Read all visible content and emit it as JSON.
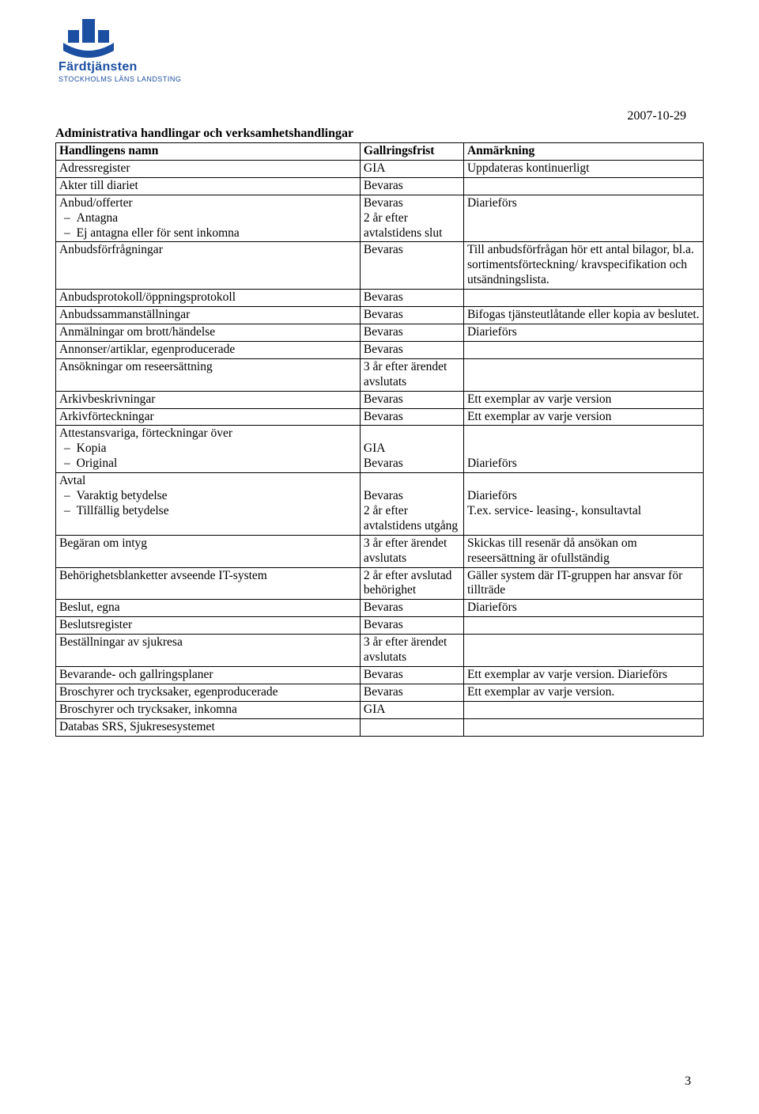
{
  "logo": {
    "brand": "Färdtjänsten",
    "subline": "STOCKHOLMS LÄNS LANDSTING",
    "primary_color": "#1c4fa1"
  },
  "date": "2007-10-29",
  "section_title": "Administrativa handlingar och verksamhetshandlingar",
  "columns": [
    "Handlingens namn",
    "Gallringsfrist",
    "Anmärkning"
  ],
  "rows": [
    {
      "name": "Adressregister",
      "frist": "GIA",
      "note": "Uppdateras kontinuerligt"
    },
    {
      "name": "Akter till diariet",
      "frist": "Bevaras",
      "note": ""
    },
    {
      "name_head": "Anbud/offerter",
      "subitems": [
        "Antagna",
        "Ej antagna eller för sent inkomna"
      ],
      "frist": "Bevaras\n2 år efter avtalstidens slut",
      "note": "Diarieförs"
    },
    {
      "name": "Anbudsförfrågningar",
      "frist": "Bevaras",
      "note": "Till anbudsförfrågan hör ett antal bilagor, bl.a. sortimentsförteckning/ kravspecifikation och utsändningslista."
    },
    {
      "name": "Anbudsprotokoll/öppningsprotokoll",
      "frist": "Bevaras",
      "note": ""
    },
    {
      "name": "Anbudssammanställningar",
      "frist": "Bevaras",
      "note": "Bifogas tjänsteutlåtande eller kopia av beslutet."
    },
    {
      "name": "Anmälningar om brott/händelse",
      "frist": "Bevaras",
      "note": "Diarieförs"
    },
    {
      "name": "Annonser/artiklar, egenproducerade",
      "frist": "Bevaras",
      "note": ""
    },
    {
      "name": "Ansökningar om reseersättning",
      "frist": "3 år efter ärendet avslutats",
      "note": ""
    },
    {
      "name": "Arkivbeskrivningar",
      "frist": "Bevaras",
      "note": "Ett exemplar av varje version"
    },
    {
      "name": "Arkivförteckningar",
      "frist": "Bevaras",
      "note": "Ett exemplar av varje version"
    },
    {
      "name_head": "Attestansvariga, förteckningar över",
      "subitems": [
        "Kopia",
        "Original"
      ],
      "frist": "\nGIA\nBevaras",
      "note": "\n\nDiarieförs"
    },
    {
      "name_head": "Avtal",
      "subitems": [
        "Varaktig betydelse",
        "Tillfällig betydelse"
      ],
      "frist": "\nBevaras\n2 år efter avtalstidens utgång",
      "note": "\nDiarieförs\nT.ex. service- leasing-, konsultavtal"
    },
    {
      "name": "Begäran om intyg",
      "frist": "3 år efter ärendet avslutats",
      "note": "Skickas till resenär då ansökan om reseersättning är ofullständig"
    },
    {
      "name": "Behörighetsblanketter avseende IT-system",
      "frist": "2 år efter avslutad behörighet",
      "note": "Gäller system där IT-gruppen har ansvar för tillträde"
    },
    {
      "name": "Beslut, egna",
      "frist": "Bevaras",
      "note": "Diarieförs"
    },
    {
      "name": "Beslutsregister",
      "frist": "Bevaras",
      "note": ""
    },
    {
      "name": "Beställningar av sjukresa",
      "frist": "3 år efter ärendet avslutats",
      "note": ""
    },
    {
      "name": "Bevarande- och gallringsplaner",
      "frist": "Bevaras",
      "note": "Ett exemplar av varje version. Diarieförs"
    },
    {
      "name": "Broschyrer och trycksaker, egenproducerade",
      "frist": "Bevaras",
      "note": "Ett exemplar av varje version."
    },
    {
      "name": "Broschyrer och trycksaker, inkomna",
      "frist": "GIA",
      "note": ""
    },
    {
      "name": "Databas SRS, Sjukresesystemet",
      "frist": "",
      "note": ""
    }
  ],
  "page_number": "3"
}
